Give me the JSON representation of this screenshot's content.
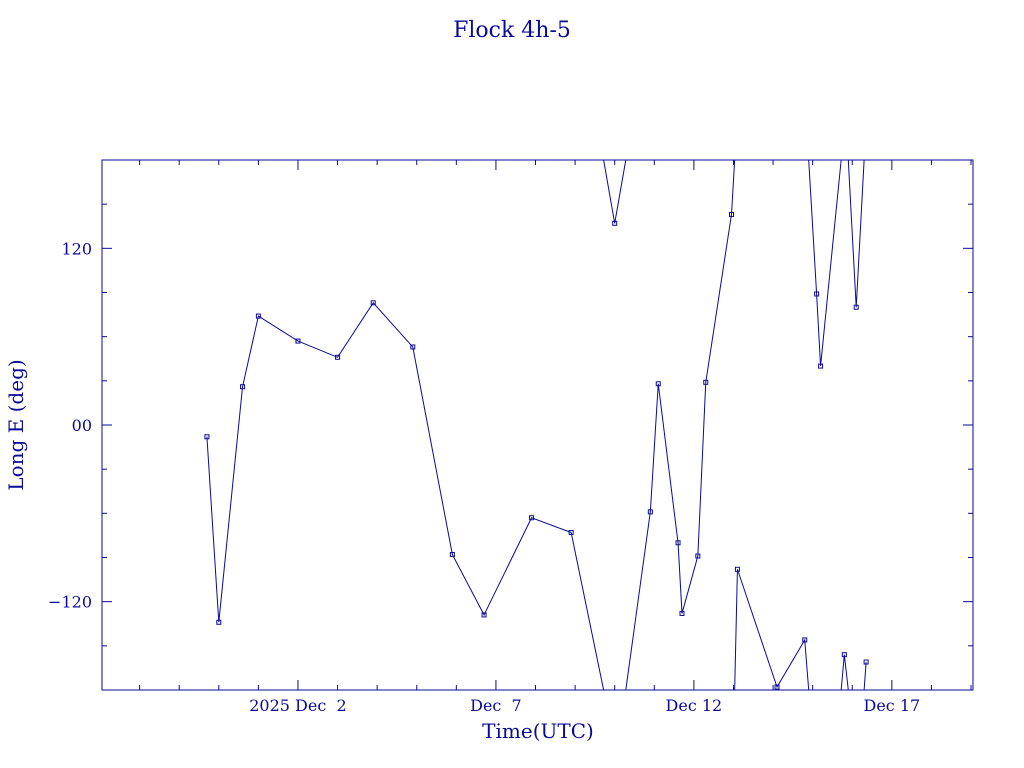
{
  "chart_data": {
    "type": "line",
    "title": "Flock 4h-5",
    "xlabel": "Time(UTC)",
    "ylabel": "Long E (deg)",
    "xlim": [
      -2.95,
      19.05
    ],
    "ylim": [
      -180,
      180
    ],
    "x_tick_labels": [
      {
        "x": 2,
        "label": "2025 Dec  2"
      },
      {
        "x": 7,
        "label": "Dec  7"
      },
      {
        "x": 12,
        "label": "Dec 12"
      },
      {
        "x": 17,
        "label": "Dec 17"
      }
    ],
    "y_tick_labels": [
      {
        "y": 120,
        "label": "120"
      },
      {
        "y": 0,
        "label": "00"
      },
      {
        "y": -120,
        "label": "−120"
      }
    ],
    "grid": false,
    "series": [
      {
        "values_note": "",
        "points": [
          [
            -0.3,
            -8
          ],
          [
            0.0,
            -134
          ],
          [
            0.6,
            26
          ],
          [
            1.0,
            74
          ],
          [
            2.0,
            57
          ],
          [
            3.0,
            46
          ],
          [
            3.9,
            83
          ],
          [
            4.9,
            53
          ],
          [
            5.9,
            -88
          ],
          [
            6.7,
            -129
          ],
          [
            7.9,
            -63
          ],
          [
            8.9,
            -73
          ],
          [
            9.72,
            -180
          ],
          [
            9.72,
            180
          ],
          [
            10.0,
            137
          ],
          [
            10.28,
            180
          ],
          [
            10.28,
            -180
          ],
          [
            10.9,
            -59
          ],
          [
            11.1,
            28
          ],
          [
            11.6,
            -80
          ],
          [
            11.7,
            -128
          ],
          [
            12.1,
            -89
          ],
          [
            12.3,
            29
          ],
          [
            12.95,
            143
          ],
          [
            13.03,
            180
          ],
          [
            13.03,
            -180
          ],
          [
            13.1,
            -98
          ],
          [
            14.1,
            -178
          ],
          [
            14.8,
            -146
          ],
          [
            14.9,
            -180
          ],
          [
            14.9,
            180
          ],
          [
            15.1,
            89
          ],
          [
            15.2,
            40
          ],
          [
            15.72,
            180
          ],
          [
            15.72,
            -180
          ],
          [
            15.8,
            -156
          ],
          [
            15.9,
            -180
          ],
          [
            15.9,
            180
          ],
          [
            16.1,
            80
          ],
          [
            16.3,
            180
          ],
          [
            16.3,
            -180
          ],
          [
            16.35,
            -161
          ]
        ]
      }
    ]
  }
}
